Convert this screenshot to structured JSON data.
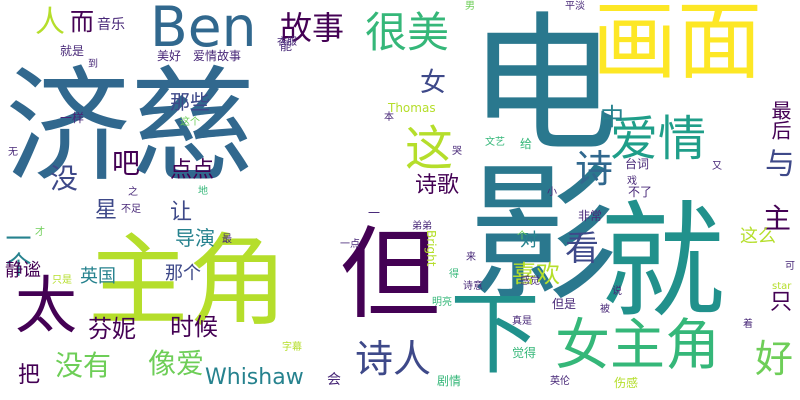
{
  "colors": {
    "background": "#ffffff",
    "palette": [
      "#440154",
      "#482878",
      "#3e4989",
      "#31688e",
      "#26828e",
      "#1f9e89",
      "#35b779",
      "#6ece58",
      "#b5de2b",
      "#fde725"
    ]
  },
  "words": [
    {
      "text": "济慈",
      "size": 125,
      "color": "#31688e"
    },
    {
      "text": "电影",
      "size": 150,
      "color": "#2a788e"
    },
    {
      "text": "主角",
      "size": 100,
      "color": "#b5de2b"
    },
    {
      "text": "画面",
      "size": 85,
      "color": "#fde725"
    },
    {
      "text": "就",
      "size": 125,
      "color": "#21918c"
    },
    {
      "text": "但",
      "size": 100,
      "color": "#440154"
    },
    {
      "text": "下",
      "size": 90,
      "color": "#21918c"
    },
    {
      "text": "Ben",
      "size": 55,
      "color": "#31688e"
    },
    {
      "text": "太",
      "size": 62,
      "color": "#440154"
    },
    {
      "text": "女主角",
      "size": 55,
      "color": "#35b779"
    },
    {
      "text": "爱情",
      "size": 48,
      "color": "#1f9e89"
    },
    {
      "text": "很美",
      "size": 42,
      "color": "#35b779"
    },
    {
      "text": "故事",
      "size": 32,
      "color": "#440154"
    },
    {
      "text": "诗人",
      "size": 38,
      "color": "#3e4989"
    },
    {
      "text": "这",
      "size": 48,
      "color": "#b5de2b"
    },
    {
      "text": "诗",
      "size": 38,
      "color": "#31688e"
    },
    {
      "text": "好",
      "size": 38,
      "color": "#6ece58"
    },
    {
      "text": "看",
      "size": 34,
      "color": "#3e4989"
    },
    {
      "text": "与",
      "size": 30,
      "color": "#3e4989"
    },
    {
      "text": "主",
      "size": 28,
      "color": "#440154"
    },
    {
      "text": "只",
      "size": 22,
      "color": "#440154"
    },
    {
      "text": "女",
      "size": 26,
      "color": "#3e4989"
    },
    {
      "text": "中",
      "size": 24,
      "color": "#26828e"
    },
    {
      "text": "而",
      "size": 24,
      "color": "#440154"
    },
    {
      "text": "音乐",
      "size": 14,
      "color": "#482878"
    },
    {
      "text": "人",
      "size": 30,
      "color": "#b5de2b"
    },
    {
      "text": "吧",
      "size": 28,
      "color": "#440154"
    },
    {
      "text": "没",
      "size": 28,
      "color": "#3e4989"
    },
    {
      "text": "一个",
      "size": 26,
      "color": "#26828e"
    },
    {
      "text": "点点",
      "size": 22,
      "color": "#440154"
    },
    {
      "text": "诗歌",
      "size": 22,
      "color": "#440154"
    },
    {
      "text": "那些",
      "size": 20,
      "color": "#3e4989"
    },
    {
      "text": "让",
      "size": 22,
      "color": "#3e4989"
    },
    {
      "text": "星",
      "size": 22,
      "color": "#3e4989"
    },
    {
      "text": "导演",
      "size": 20,
      "color": "#26828e"
    },
    {
      "text": "英国",
      "size": 18,
      "color": "#26828e"
    },
    {
      "text": "那个",
      "size": 18,
      "color": "#3e4989"
    },
    {
      "text": "静谧",
      "size": 18,
      "color": "#440154"
    },
    {
      "text": "芬妮",
      "size": 24,
      "color": "#440154"
    },
    {
      "text": "时候",
      "size": 24,
      "color": "#440154"
    },
    {
      "text": "把",
      "size": 22,
      "color": "#440154"
    },
    {
      "text": "没有",
      "size": 28,
      "color": "#6ece58"
    },
    {
      "text": "像爱",
      "size": 28,
      "color": "#6ece58"
    },
    {
      "text": "Whishaw",
      "size": 22,
      "color": "#26828e"
    },
    {
      "text": "会",
      "size": 14,
      "color": "#482878"
    },
    {
      "text": "喜欢",
      "size": 24,
      "color": "#b5de2b"
    },
    {
      "text": "对",
      "size": 18,
      "color": "#26828e"
    },
    {
      "text": "这么",
      "size": 18,
      "color": "#b5de2b"
    },
    {
      "text": "最后",
      "size": 20,
      "color": "#440154"
    },
    {
      "text": "Thomas",
      "size": 12,
      "color": "#b5de2b"
    },
    {
      "text": "Bright",
      "size": 12,
      "color": "#b5de2b"
    },
    {
      "text": "就是",
      "size": 12,
      "color": "#482878"
    },
    {
      "text": "美好",
      "size": 12,
      "color": "#482878"
    },
    {
      "text": "爱情故事",
      "size": 12,
      "color": "#482878"
    },
    {
      "text": "衣服",
      "size": 10,
      "color": "#482878"
    },
    {
      "text": "能",
      "size": 12,
      "color": "#482878"
    },
    {
      "text": "男",
      "size": 10,
      "color": "#6ece58"
    },
    {
      "text": "平淡",
      "size": 10,
      "color": "#482878"
    },
    {
      "text": "一样",
      "size": 12,
      "color": "#482878"
    },
    {
      "text": "这个",
      "size": 10,
      "color": "#6ece58"
    },
    {
      "text": "无",
      "size": 10,
      "color": "#482878"
    },
    {
      "text": "文艺",
      "size": 10,
      "color": "#35b779"
    },
    {
      "text": "给",
      "size": 12,
      "color": "#35b779"
    },
    {
      "text": "台词",
      "size": 12,
      "color": "#482878"
    },
    {
      "text": "戏",
      "size": 10,
      "color": "#482878"
    },
    {
      "text": "不了",
      "size": 12,
      "color": "#482878"
    },
    {
      "text": "非常",
      "size": 12,
      "color": "#482878"
    },
    {
      "text": "小",
      "size": 10,
      "color": "#482878"
    },
    {
      "text": "地",
      "size": 10,
      "color": "#35b779"
    },
    {
      "text": "最",
      "size": 10,
      "color": "#482878"
    },
    {
      "text": "弟弟",
      "size": 10,
      "color": "#482878"
    },
    {
      "text": "一点",
      "size": 10,
      "color": "#482878"
    },
    {
      "text": "诗意",
      "size": 10,
      "color": "#482878"
    },
    {
      "text": "感觉",
      "size": 10,
      "color": "#482878"
    },
    {
      "text": "但是",
      "size": 12,
      "color": "#482878"
    },
    {
      "text": "说",
      "size": 10,
      "color": "#482878"
    },
    {
      "text": "可",
      "size": 10,
      "color": "#482878"
    },
    {
      "text": "star",
      "size": 10,
      "color": "#b5de2b"
    },
    {
      "text": "明亮",
      "size": 10,
      "color": "#35b779"
    },
    {
      "text": "真是",
      "size": 10,
      "color": "#482878"
    },
    {
      "text": "被",
      "size": 10,
      "color": "#482878"
    },
    {
      "text": "着",
      "size": 10,
      "color": "#482878"
    },
    {
      "text": "字幕",
      "size": 10,
      "color": "#b5de2b"
    },
    {
      "text": "觉得",
      "size": 12,
      "color": "#35b779"
    },
    {
      "text": "剧情",
      "size": 12,
      "color": "#35b779"
    },
    {
      "text": "英伦",
      "size": 10,
      "color": "#482878"
    },
    {
      "text": "伤感",
      "size": 12,
      "color": "#b5de2b"
    },
    {
      "text": "哭",
      "size": 10,
      "color": "#482878"
    },
    {
      "text": "本",
      "size": 10,
      "color": "#482878"
    },
    {
      "text": "又",
      "size": 10,
      "color": "#482878"
    },
    {
      "text": "之",
      "size": 10,
      "color": "#482878"
    },
    {
      "text": "不足",
      "size": 10,
      "color": "#482878"
    },
    {
      "text": "才",
      "size": 10,
      "color": "#6ece58"
    },
    {
      "text": "个",
      "size": 10,
      "color": "#6ece58"
    },
    {
      "text": "一",
      "size": 12,
      "color": "#482878"
    },
    {
      "text": "得",
      "size": 10,
      "color": "#35b779"
    },
    {
      "text": "来",
      "size": 10,
      "color": "#482878"
    },
    {
      "text": "只是",
      "size": 10,
      "color": "#b5de2b"
    },
    {
      "text": "到",
      "size": 10,
      "color": "#482878"
    }
  ]
}
